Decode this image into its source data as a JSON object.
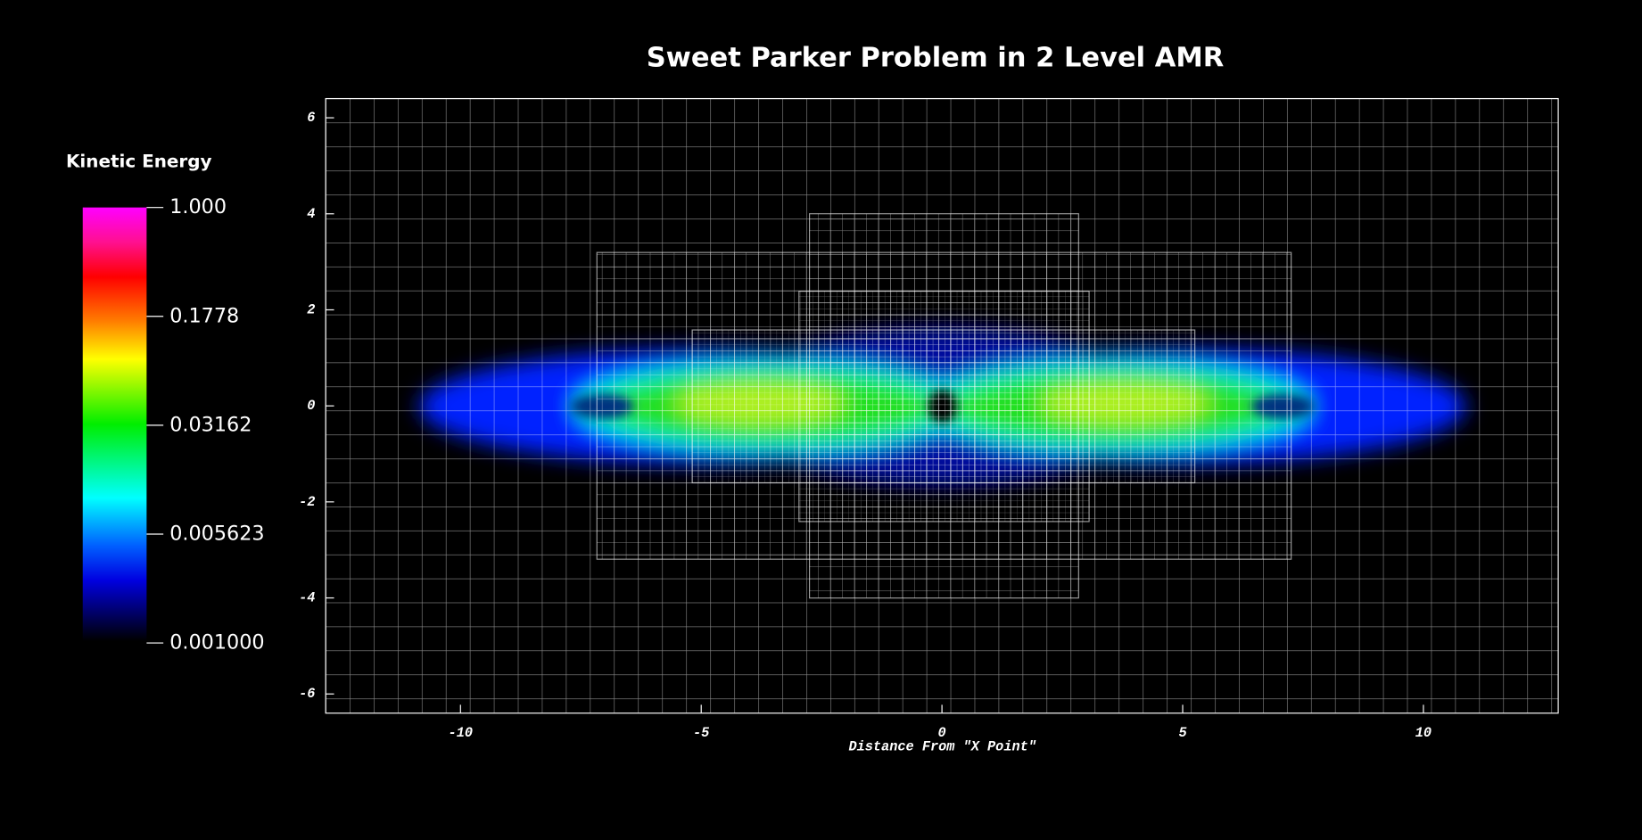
{
  "chart_data": {
    "type": "heatmap",
    "title": "Sweet Parker Problem in 2 Level AMR",
    "xlabel": "Distance From \"X Point\"",
    "xlim": [
      -12.8,
      12.8
    ],
    "ylim": [
      -6.4,
      6.4
    ],
    "xticks": [
      -10,
      -5,
      0,
      5,
      10
    ],
    "yticks": [
      -6,
      -4,
      -2,
      0,
      2,
      4,
      6
    ],
    "colorbar": {
      "label": "Kinetic Energy",
      "scale": "log",
      "lim": [
        0.001,
        1
      ],
      "ticks": [
        {
          "value": 1,
          "label": "1.000"
        },
        0.1778,
        0.03162,
        0.005623,
        {
          "value": 0.001,
          "label": "0.001000"
        }
      ]
    }
  }
}
